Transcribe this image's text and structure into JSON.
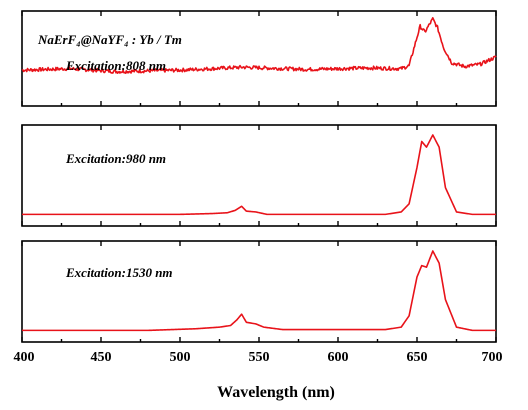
{
  "chart_data": {
    "type": "line",
    "xlabel": "Wavelength (nm)",
    "xlim": [
      400,
      700
    ],
    "xticks": [
      400,
      450,
      500,
      550,
      600,
      650,
      700
    ],
    "line_color": "#e8131a",
    "grid": false,
    "sample_label": "NaErF₄@NaYF₄ : Yb / Tm",
    "panels": [
      {
        "label": "Excitation:808 nm",
        "baseline": 0.3,
        "noise": 0.05,
        "slope": 0.0,
        "points": [
          [
            400,
            0.3
          ],
          [
            430,
            0.32
          ],
          [
            460,
            0.28
          ],
          [
            500,
            0.3
          ],
          [
            540,
            0.34
          ],
          [
            580,
            0.31
          ],
          [
            620,
            0.33
          ],
          [
            640,
            0.32
          ],
          [
            645,
            0.36
          ],
          [
            650,
            0.75
          ],
          [
            652,
            0.9
          ],
          [
            655,
            0.82
          ],
          [
            658,
            0.93
          ],
          [
            660,
            1.0
          ],
          [
            663,
            0.88
          ],
          [
            667,
            0.6
          ],
          [
            672,
            0.4
          ],
          [
            680,
            0.35
          ],
          [
            690,
            0.38
          ],
          [
            700,
            0.48
          ]
        ]
      },
      {
        "label": "Excitation:980 nm",
        "baseline": 0.02,
        "noise": 0.0,
        "slope": 0.0,
        "points": [
          [
            400,
            0.02
          ],
          [
            500,
            0.02
          ],
          [
            520,
            0.03
          ],
          [
            530,
            0.04
          ],
          [
            535,
            0.07
          ],
          [
            539,
            0.12
          ],
          [
            542,
            0.06
          ],
          [
            548,
            0.05
          ],
          [
            555,
            0.02
          ],
          [
            630,
            0.02
          ],
          [
            640,
            0.05
          ],
          [
            645,
            0.15
          ],
          [
            650,
            0.6
          ],
          [
            653,
            0.92
          ],
          [
            656,
            0.85
          ],
          [
            660,
            1.0
          ],
          [
            664,
            0.85
          ],
          [
            668,
            0.35
          ],
          [
            675,
            0.05
          ],
          [
            685,
            0.02
          ],
          [
            700,
            0.02
          ]
        ]
      },
      {
        "label": "Excitation:1530 nm",
        "baseline": 0.02,
        "noise": 0.0,
        "slope": 0.0,
        "points": [
          [
            400,
            0.02
          ],
          [
            480,
            0.02
          ],
          [
            510,
            0.04
          ],
          [
            525,
            0.06
          ],
          [
            532,
            0.08
          ],
          [
            536,
            0.15
          ],
          [
            539,
            0.22
          ],
          [
            542,
            0.12
          ],
          [
            548,
            0.1
          ],
          [
            553,
            0.06
          ],
          [
            565,
            0.03
          ],
          [
            630,
            0.03
          ],
          [
            640,
            0.06
          ],
          [
            645,
            0.2
          ],
          [
            650,
            0.68
          ],
          [
            653,
            0.82
          ],
          [
            656,
            0.8
          ],
          [
            660,
            1.0
          ],
          [
            664,
            0.85
          ],
          [
            668,
            0.4
          ],
          [
            675,
            0.06
          ],
          [
            685,
            0.02
          ],
          [
            700,
            0.02
          ]
        ]
      }
    ]
  }
}
